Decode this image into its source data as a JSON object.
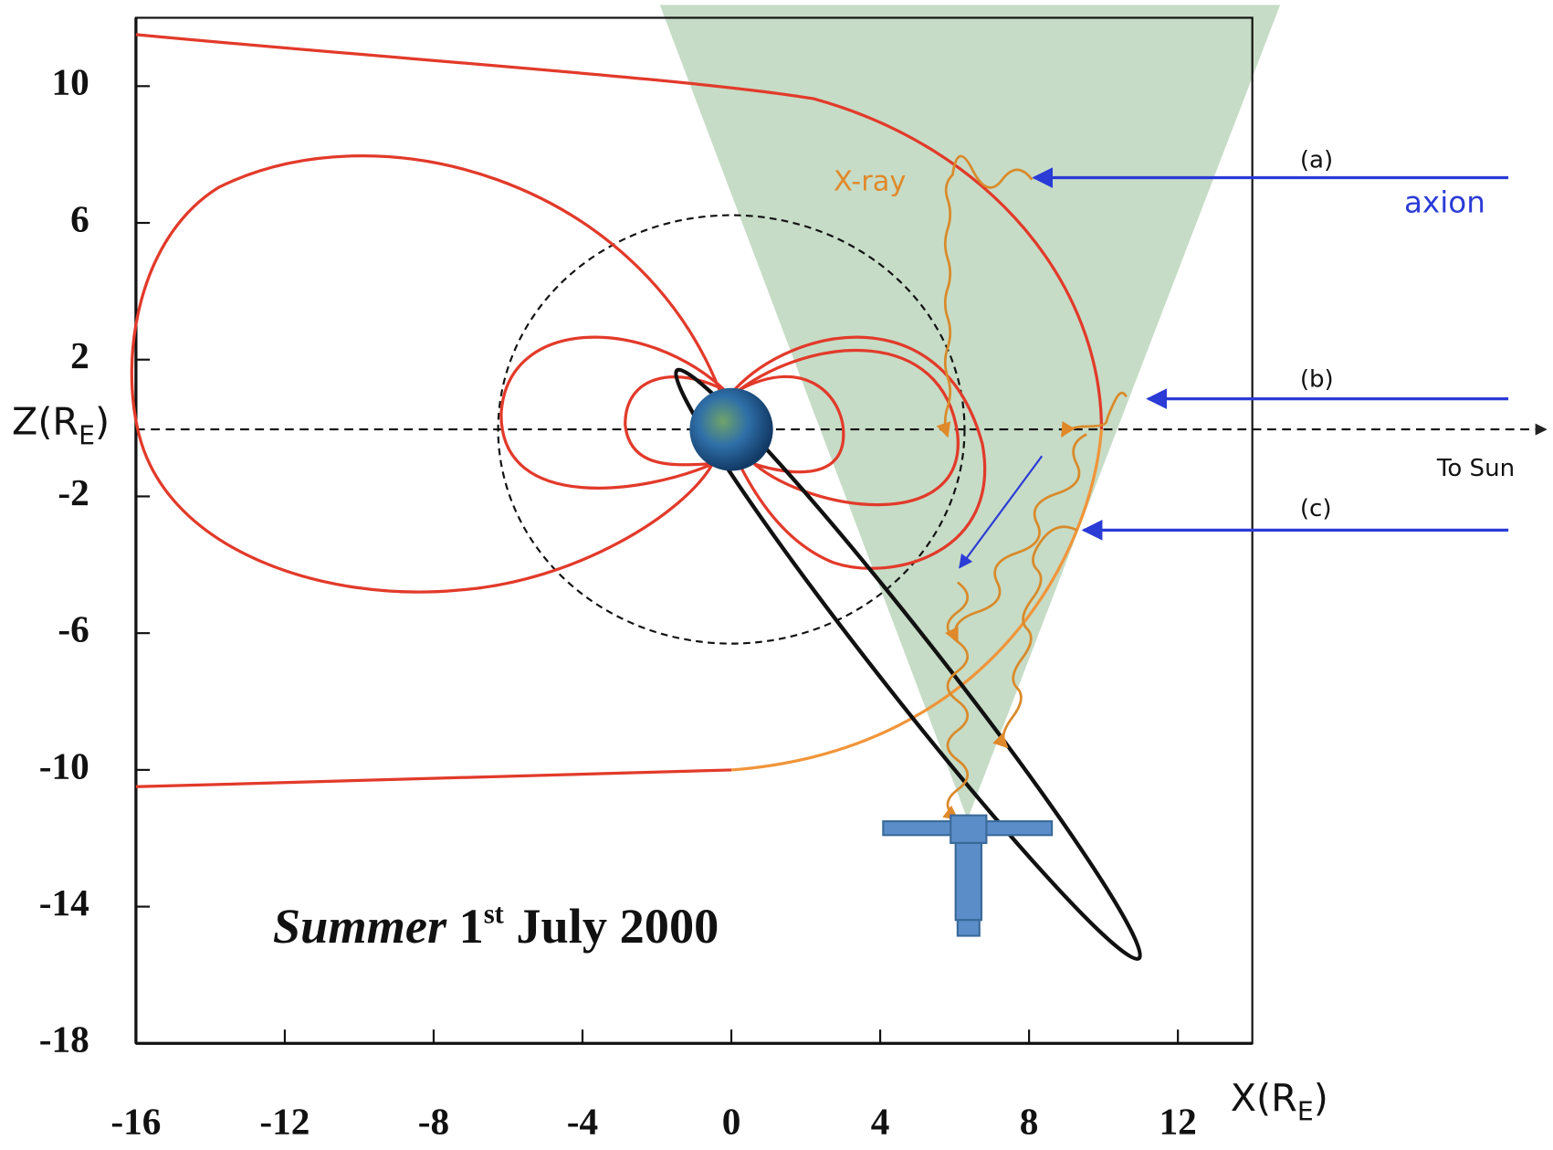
{
  "chart_data": {
    "type": "diagram",
    "xlim": [
      -16,
      14
    ],
    "ylim": [
      -18,
      12
    ],
    "xticks": [
      -16,
      -12,
      -8,
      -4,
      0,
      4,
      8,
      12
    ],
    "yticks": [
      10,
      6,
      2,
      -2,
      -6,
      -10,
      -14,
      -18
    ],
    "x_label": {
      "text": "X(R",
      "sub": "E",
      "close": ")"
    },
    "y_label": {
      "text": "Z(R",
      "sub": "E",
      "close": ")"
    },
    "annotations": {
      "xray": "X-ray",
      "axion": "axion",
      "a": "(a)",
      "b": "(b)",
      "c": "(c)",
      "sun": "To Sun"
    },
    "caption": {
      "season": "Summer",
      "day": "1",
      "suffix": "st",
      "date": "July 2000"
    }
  }
}
